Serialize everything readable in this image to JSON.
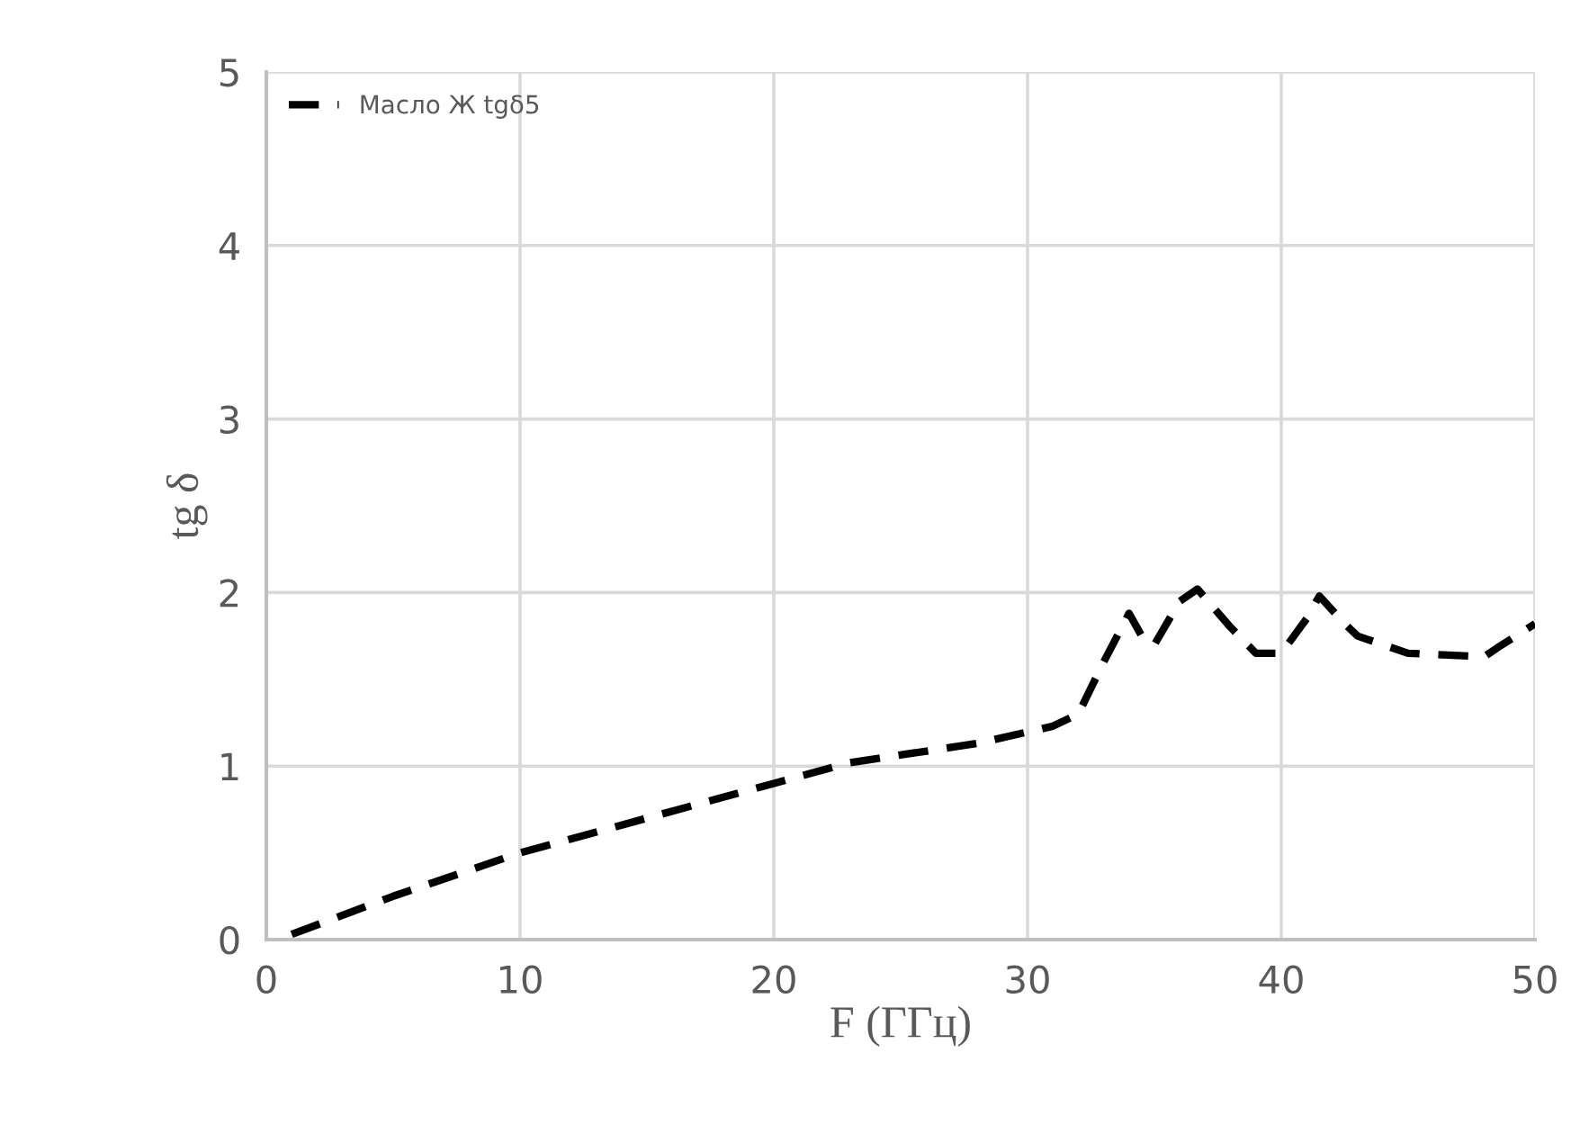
{
  "chart_data": {
    "type": "line",
    "xlabel": "F (ГГц)",
    "ylabel": "tg δ",
    "xlim": [
      0,
      50
    ],
    "ylim": [
      0,
      5
    ],
    "xticks": [
      0,
      10,
      20,
      30,
      40,
      50
    ],
    "yticks": [
      0,
      1,
      2,
      3,
      4,
      5
    ],
    "grid": true,
    "legend": "top left",
    "line_style": "dashed",
    "series": [
      {
        "name": "Масло Ж tgδ5",
        "color": "#000000",
        "x": [
          1,
          5,
          10,
          15,
          20,
          23,
          28,
          31,
          32,
          33,
          34,
          34.5,
          35,
          36,
          36.7,
          38,
          39,
          40,
          41,
          41.5,
          42.5,
          43,
          44,
          45,
          48,
          48.5,
          50
        ],
        "values": [
          0.03,
          0.25,
          0.5,
          0.7,
          0.9,
          1.02,
          1.13,
          1.23,
          1.3,
          1.6,
          1.88,
          1.75,
          1.7,
          1.95,
          2.02,
          1.8,
          1.65,
          1.65,
          1.85,
          1.98,
          1.82,
          1.75,
          1.7,
          1.65,
          1.63,
          1.68,
          1.82
        ]
      }
    ]
  }
}
